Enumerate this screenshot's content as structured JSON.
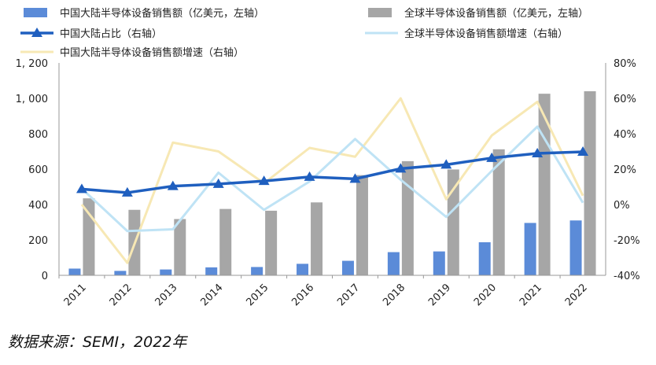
{
  "chart_data": {
    "type": "bar",
    "categories": [
      "2011",
      "2012",
      "2013",
      "2014",
      "2015",
      "2016",
      "2017",
      "2018",
      "2019",
      "2020",
      "2021",
      "2022"
    ],
    "series": [
      {
        "name": "中国大陆半导体设备销售额（亿美元，左轴）",
        "kind": "bar",
        "axis": "left",
        "color": "#5b8bd8",
        "values": [
          38,
          25,
          33,
          45,
          47,
          65,
          82,
          131,
          135,
          187,
          296,
          310
        ]
      },
      {
        "name": "全球半导体设备销售额（亿美元，左轴）",
        "kind": "bar",
        "axis": "left",
        "color": "#a6a6a6",
        "values": [
          435,
          370,
          318,
          375,
          365,
          412,
          566,
          645,
          598,
          712,
          1026,
          1040
        ]
      },
      {
        "name": "中国大陆占比（右轴）",
        "kind": "line",
        "axis": "right",
        "color": "#1f5fbf",
        "marker": "triangle",
        "values": [
          8.7,
          6.7,
          10.4,
          11.6,
          13.3,
          15.6,
          14.5,
          20.3,
          22.5,
          26.3,
          28.9,
          29.8
        ]
      },
      {
        "name": "全球半导体设备销售额增速（右轴）",
        "kind": "line",
        "axis": "right",
        "color": "#bfe3f5",
        "values": [
          9,
          -15,
          -14,
          18,
          -3,
          13,
          37,
          14,
          -7,
          19,
          44,
          1
        ]
      },
      {
        "name": "中国大陆半导体设备销售额增速（右轴）",
        "kind": "line",
        "axis": "right",
        "color": "#f7e8b4",
        "values": [
          0,
          -33,
          35,
          30,
          12,
          32,
          27,
          60,
          3,
          39,
          58,
          5
        ]
      }
    ],
    "y_left": {
      "min": 0,
      "max": 1200,
      "ticks": [
        0,
        200,
        400,
        600,
        800,
        1000,
        1200
      ],
      "tick_labels": [
        "0",
        "200",
        "400",
        "600",
        "800",
        "1, 000",
        "1, 200"
      ]
    },
    "y_right": {
      "min": -40,
      "max": 80,
      "ticks": [
        -40,
        -20,
        0,
        20,
        40,
        60,
        80
      ],
      "tick_labels": [
        "-40%",
        "-20%",
        "0%",
        "20%",
        "40%",
        "60%",
        "80%"
      ]
    },
    "grid": false,
    "legend": "top"
  },
  "source": "数据来源：SEMI，2022年"
}
